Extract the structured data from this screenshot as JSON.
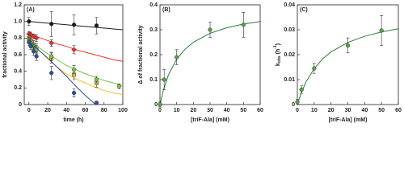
{
  "chart_data": [
    {
      "type": "scatter",
      "panel_label": "(A)",
      "x_label": "time (h)",
      "y_label": "fractional activity",
      "xlim": [
        -5,
        100
      ],
      "xticks": [
        0,
        20,
        40,
        60,
        80,
        100
      ],
      "ylim": [
        0,
        1.2
      ],
      "yticks": [
        0,
        0.2,
        0.4,
        0.6,
        0.8,
        {
          "value": 1,
          "label": "1.0"
        },
        1.2
      ],
      "series": [
        {
          "color": "#1a1a1a",
          "marker": "circle",
          "x": [
            0,
            24,
            48,
            72
          ],
          "values": [
            1.0,
            0.97,
            0.96,
            0.95
          ],
          "errors": [
            0.05,
            0.15,
            0.12,
            0.1
          ],
          "fit_x": [
            0,
            10,
            20,
            30,
            40,
            50,
            60,
            70,
            80,
            90,
            100
          ],
          "fit_values": [
            1.0,
            0.99,
            0.98,
            0.97,
            0.96,
            0.95,
            0.94,
            0.93,
            0.92,
            0.91,
            0.9
          ]
        },
        {
          "color": "#e8302a",
          "marker": "diamond",
          "x": [
            0,
            2,
            5,
            8,
            24,
            48
          ],
          "values": [
            0.85,
            0.84,
            0.82,
            0.8,
            0.74,
            0.66
          ],
          "errors": [
            0.03,
            0.03,
            0.03,
            0.04,
            0.04,
            0.05
          ],
          "fit_x": [
            0,
            10,
            20,
            30,
            40,
            50,
            60,
            70,
            80,
            90,
            100
          ],
          "fit_values": [
            0.85,
            0.81,
            0.77,
            0.73,
            0.7,
            0.66,
            0.63,
            0.6,
            0.57,
            0.54,
            0.52
          ]
        },
        {
          "color": "#f2c12e",
          "marker": "square",
          "x": [
            0,
            2,
            5,
            8,
            24,
            48,
            72
          ],
          "values": [
            0.8,
            0.76,
            0.72,
            0.68,
            0.56,
            0.36,
            0.26
          ],
          "errors": [
            0.04,
            0.04,
            0.05,
            0.05,
            0.06,
            0.06,
            0.05
          ],
          "fit_x": [
            0,
            10,
            20,
            30,
            40,
            50,
            60,
            70,
            80,
            90,
            100
          ],
          "fit_values": [
            0.8,
            0.66,
            0.55,
            0.45,
            0.37,
            0.31,
            0.26,
            0.21,
            0.17,
            0.14,
            0.12
          ]
        },
        {
          "color": "#7cc04a",
          "marker": "circle",
          "x": [
            0,
            2,
            5,
            8,
            24,
            48,
            72,
            96
          ],
          "values": [
            0.78,
            0.74,
            0.7,
            0.66,
            0.58,
            0.42,
            0.3,
            0.22
          ],
          "errors": [
            0.03,
            0.04,
            0.04,
            0.05,
            0.05,
            0.05,
            0.04,
            0.03
          ],
          "fit_x": [
            0,
            10,
            20,
            30,
            40,
            50,
            60,
            70,
            80,
            90,
            100
          ],
          "fit_values": [
            0.78,
            0.69,
            0.61,
            0.54,
            0.47,
            0.42,
            0.37,
            0.33,
            0.29,
            0.26,
            0.22
          ]
        },
        {
          "color": "#2f4f9e",
          "marker": "circle",
          "x": [
            0,
            2,
            5,
            8,
            24,
            48,
            72
          ],
          "values": [
            0.75,
            0.7,
            0.64,
            0.58,
            0.38,
            0.14,
            0.02
          ],
          "errors": [
            0.04,
            0.04,
            0.05,
            0.05,
            0.08,
            0.05,
            0.02
          ],
          "fit_x": [
            0,
            10,
            20,
            30,
            40,
            50,
            60,
            70
          ],
          "fit_values": [
            0.75,
            0.66,
            0.56,
            0.45,
            0.34,
            0.22,
            0.11,
            0.01
          ]
        }
      ]
    },
    {
      "type": "scatter",
      "panel_label": "(B)",
      "x_label": "[triF-Ala] (mM)",
      "y_label": "Δ of fractional activity",
      "xlim": [
        0,
        60
      ],
      "xticks": [
        0,
        10,
        20,
        30,
        40,
        50,
        60
      ],
      "ylim": [
        0,
        0.4
      ],
      "yticks": [
        0,
        0.1,
        0.2,
        0.3,
        0.4
      ],
      "series": [
        {
          "color": "#5a9e48",
          "marker": "circle",
          "x": [
            0,
            2.5,
            10,
            30,
            50
          ],
          "values": [
            0,
            0.1,
            0.19,
            0.3,
            0.32
          ],
          "errors": [
            0.01,
            0.04,
            0.03,
            0.03,
            0.05
          ],
          "fit_x": [
            0,
            2,
            5,
            10,
            15,
            20,
            30,
            40,
            50,
            60
          ],
          "fit_values": [
            0,
            0.057,
            0.118,
            0.182,
            0.222,
            0.25,
            0.286,
            0.308,
            0.323,
            0.333
          ],
          "fit_color": "#2e7d3a"
        }
      ]
    },
    {
      "type": "scatter",
      "panel_label": "(C)",
      "x_label": "[triF-Ala] (mM)",
      "y_label": [
        "k",
        "obs",
        " (h",
        "-1",
        ")"
      ],
      "xlim": [
        0,
        60
      ],
      "xticks": [
        0,
        10,
        20,
        30,
        40,
        50,
        60
      ],
      "ylim": [
        0,
        0.04
      ],
      "yticks": [
        0,
        0.01,
        0.02,
        0.03,
        0.04
      ],
      "series": [
        {
          "color": "#5a9e48",
          "marker": "circle",
          "x": [
            0,
            2.5,
            10,
            30,
            50
          ],
          "values": [
            0.001,
            0.006,
            0.0145,
            0.0237,
            0.0297
          ],
          "errors": [
            0.001,
            0.0015,
            0.002,
            0.003,
            0.006
          ],
          "fit_x": [
            0,
            2,
            5,
            10,
            15,
            20,
            30,
            40,
            50,
            60
          ],
          "fit_values": [
            0,
            0.0041,
            0.0089,
            0.0144,
            0.0183,
            0.0211,
            0.0249,
            0.0274,
            0.0291,
            0.0304
          ],
          "fit_color": "#2e7d3a"
        }
      ]
    }
  ]
}
